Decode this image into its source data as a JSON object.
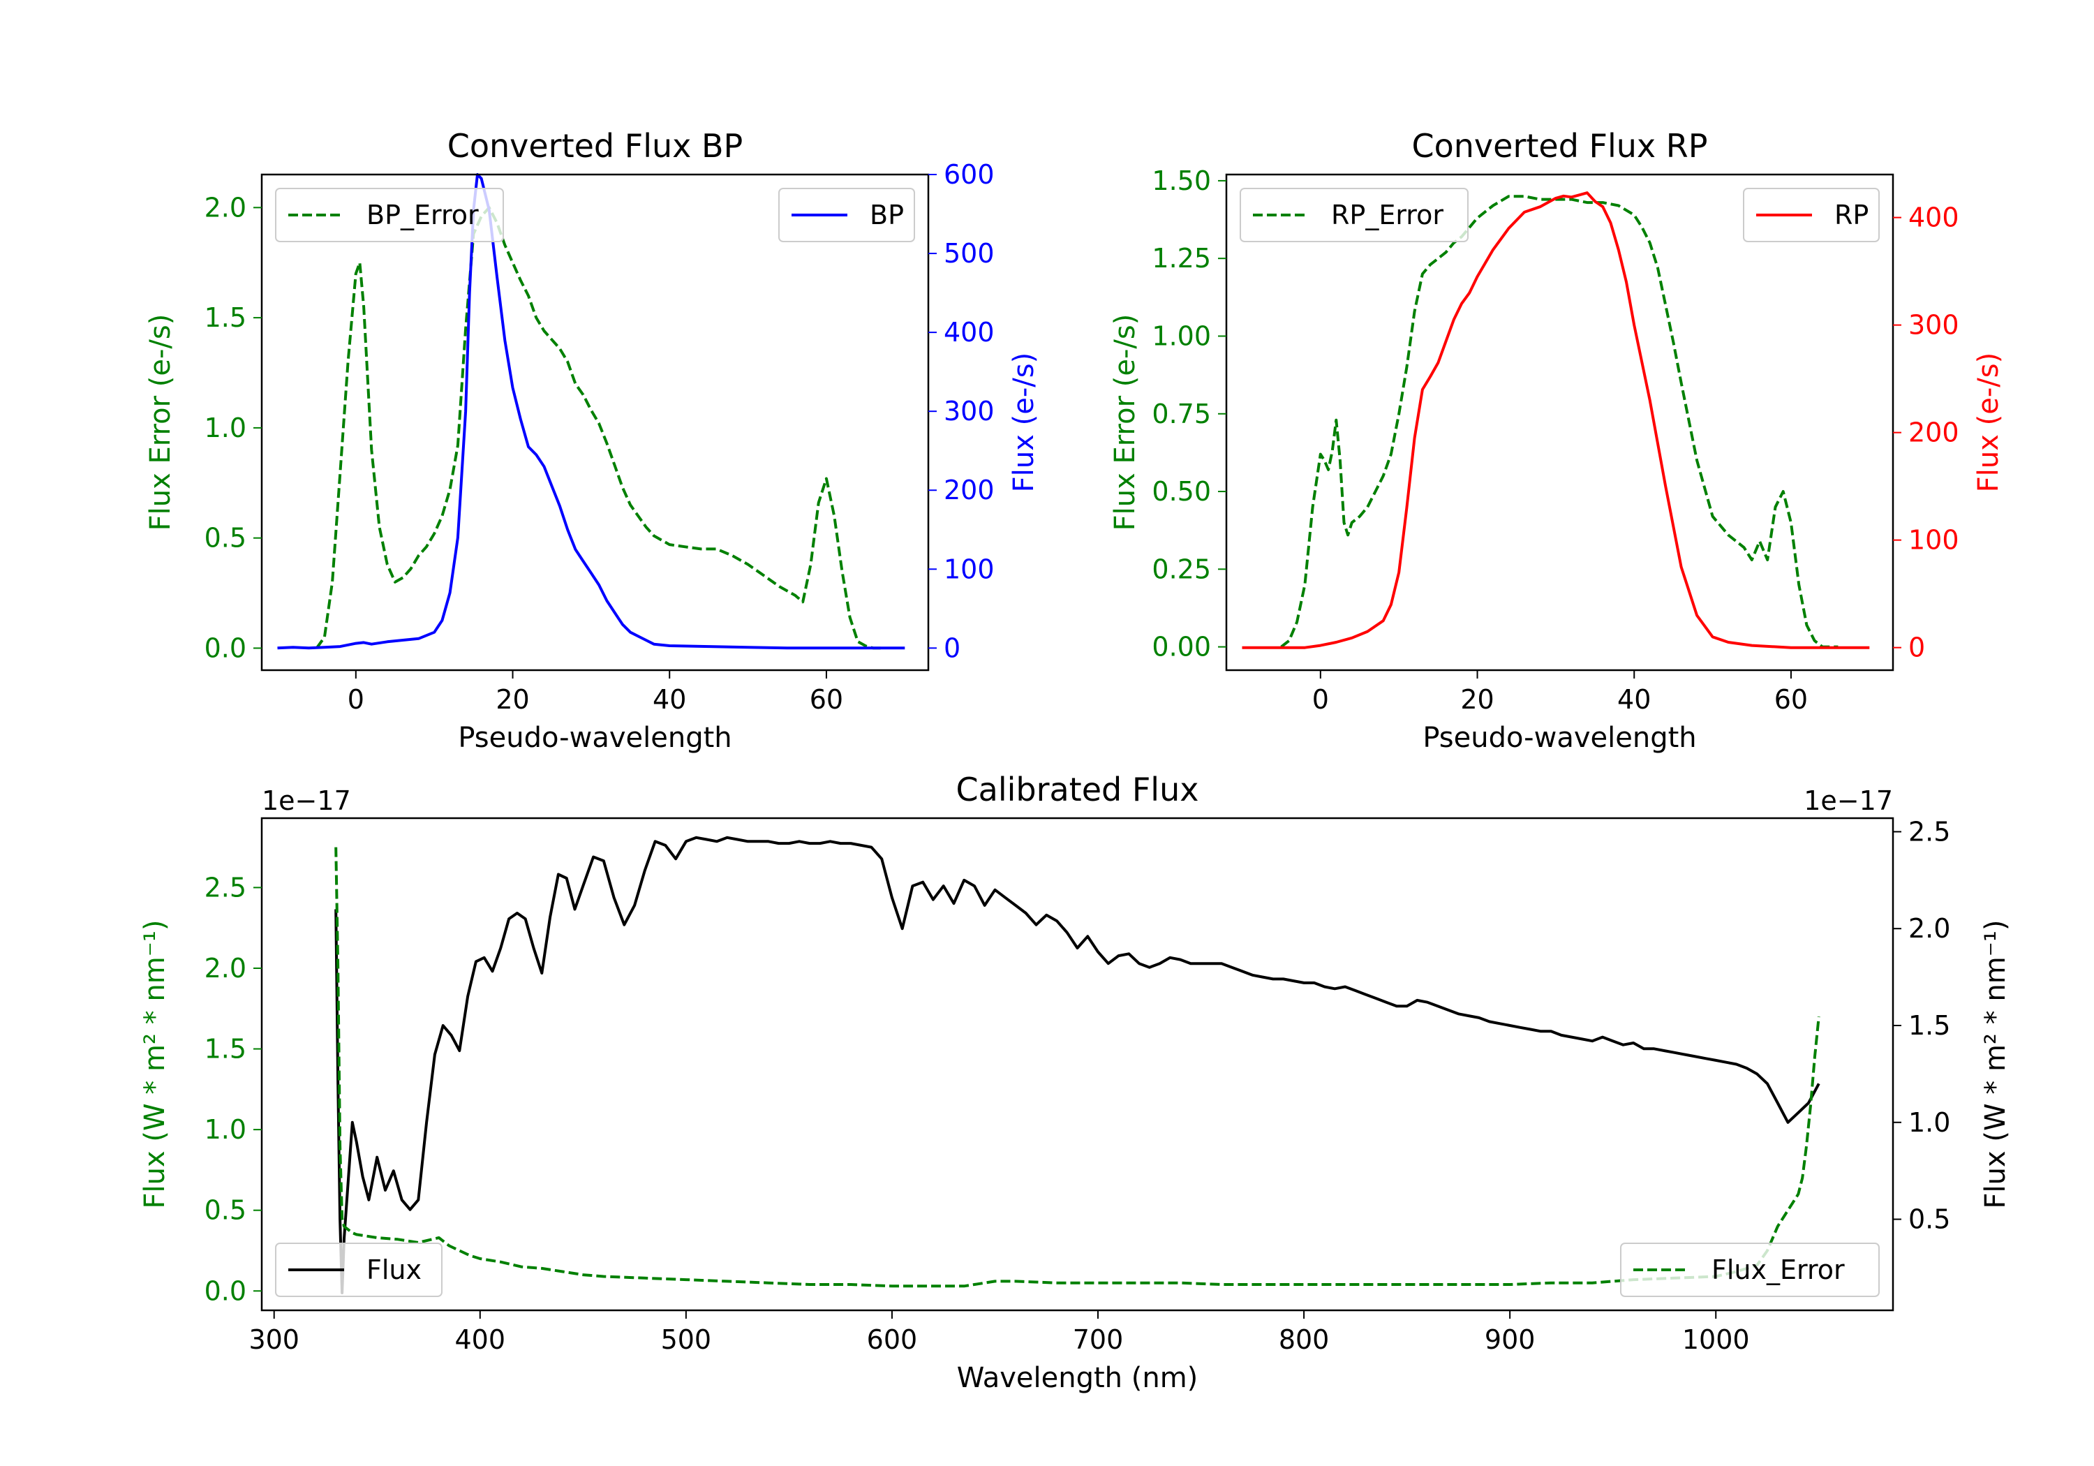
{
  "colors": {
    "green": "#008000",
    "blue": "#0000ff",
    "red": "#ff0000",
    "black": "#000000"
  },
  "chart_data": [
    {
      "id": "bp",
      "type": "line",
      "title": "Converted Flux BP",
      "xlabel": "Pseudo-wavelength",
      "ylabel_left": "Flux Error (e-/s)",
      "ylabel_right": "Flux (e-/s)",
      "xlim": [
        -12,
        73
      ],
      "ylim_left": [
        -0.1,
        2.15
      ],
      "ylim_right": [
        -28,
        600
      ],
      "xticks": [
        0,
        20,
        40,
        60
      ],
      "yticks_left": [
        0.0,
        0.5,
        1.0,
        1.5,
        2.0
      ],
      "yticks_right": [
        0,
        100,
        200,
        300,
        400,
        500,
        600
      ],
      "yticklabels_left": [
        "0.0",
        "0.5",
        "1.0",
        "1.5",
        "2.0"
      ],
      "yticklabels_right": [
        "0",
        "100",
        "200",
        "300",
        "400",
        "500",
        "600"
      ],
      "series": [
        {
          "name": "BP_Error",
          "axis": "left",
          "color": "green",
          "style": "dashed",
          "x": [
            -5,
            -4,
            -3,
            -2,
            -1,
            0,
            0.5,
            1,
            2,
            3,
            4,
            5,
            6,
            7,
            8,
            9,
            10,
            11,
            12,
            13,
            14,
            15,
            16,
            17,
            18,
            19,
            20,
            21,
            22,
            23,
            24,
            25,
            26,
            27,
            28,
            29,
            30,
            31,
            32,
            33,
            34,
            35,
            36,
            37,
            38,
            39,
            40,
            42,
            44,
            46,
            48,
            50,
            52,
            54,
            56,
            57,
            58,
            59,
            60,
            61,
            62,
            63,
            64,
            65,
            66,
            67
          ],
          "y": [
            0.0,
            0.05,
            0.3,
            0.8,
            1.3,
            1.7,
            1.75,
            1.55,
            0.9,
            0.55,
            0.38,
            0.3,
            0.32,
            0.36,
            0.42,
            0.46,
            0.52,
            0.6,
            0.72,
            0.92,
            1.45,
            1.88,
            1.96,
            2.0,
            1.93,
            1.83,
            1.75,
            1.67,
            1.6,
            1.5,
            1.44,
            1.4,
            1.36,
            1.3,
            1.2,
            1.15,
            1.08,
            1.02,
            0.93,
            0.83,
            0.73,
            0.65,
            0.6,
            0.55,
            0.51,
            0.49,
            0.47,
            0.46,
            0.45,
            0.45,
            0.42,
            0.38,
            0.33,
            0.28,
            0.24,
            0.21,
            0.38,
            0.66,
            0.77,
            0.6,
            0.35,
            0.14,
            0.03,
            0.01,
            0.0,
            0.0
          ]
        },
        {
          "name": "BP",
          "axis": "right",
          "color": "blue",
          "style": "solid",
          "x": [
            -10,
            -8,
            -6,
            -4,
            -2,
            0,
            1,
            2,
            4,
            6,
            8,
            10,
            11,
            12,
            13,
            14,
            14.5,
            15,
            15.5,
            16,
            17,
            18,
            19,
            20,
            21,
            22,
            23,
            24,
            25,
            26,
            27,
            28,
            29,
            30,
            31,
            32,
            33,
            34,
            35,
            36,
            37,
            38,
            40,
            45,
            50,
            55,
            60,
            65,
            70
          ],
          "y": [
            0,
            1,
            0,
            1,
            2,
            6,
            7,
            5,
            8,
            10,
            12,
            20,
            35,
            70,
            140,
            300,
            450,
            555,
            600,
            595,
            555,
            470,
            390,
            330,
            290,
            255,
            245,
            230,
            205,
            180,
            150,
            125,
            110,
            95,
            80,
            60,
            45,
            30,
            20,
            15,
            10,
            5,
            3,
            2,
            1,
            0,
            0,
            0,
            0
          ]
        }
      ],
      "legend_left": {
        "label": "BP_Error",
        "placement": "upper left"
      },
      "legend_right": {
        "label": "BP",
        "placement": "upper right"
      }
    },
    {
      "id": "rp",
      "type": "line",
      "title": "Converted Flux RP",
      "xlabel": "Pseudo-wavelength",
      "ylabel_left": "Flux Error (e-/s)",
      "ylabel_right": "Flux (e-/s)",
      "xlim": [
        -12,
        73
      ],
      "ylim_left": [
        -0.075,
        1.52
      ],
      "ylim_right": [
        -21,
        440
      ],
      "xticks": [
        0,
        20,
        40,
        60
      ],
      "yticks_left": [
        0.0,
        0.25,
        0.5,
        0.75,
        1.0,
        1.25,
        1.5
      ],
      "yticks_right": [
        0,
        100,
        200,
        300,
        400
      ],
      "yticklabels_left": [
        "0.00",
        "0.25",
        "0.50",
        "0.75",
        "1.00",
        "1.25",
        "1.50"
      ],
      "yticklabels_right": [
        "0",
        "100",
        "200",
        "300",
        "400"
      ],
      "series": [
        {
          "name": "RP_Error",
          "axis": "left",
          "color": "green",
          "style": "dashed",
          "x": [
            -5,
            -4,
            -3,
            -2,
            -1,
            0,
            0.5,
            1,
            1.5,
            2,
            2.5,
            3,
            3.5,
            4,
            5,
            6,
            7,
            8,
            9,
            10,
            11,
            12,
            13,
            14,
            15,
            16,
            17,
            18,
            19,
            20,
            22,
            24,
            26,
            28,
            30,
            32,
            34,
            36,
            38,
            40,
            41,
            42,
            43,
            44,
            45,
            46,
            48,
            50,
            52,
            54,
            55,
            56,
            57,
            58,
            59,
            60,
            61,
            62,
            63,
            64,
            65,
            66
          ],
          "y": [
            0.0,
            0.02,
            0.08,
            0.2,
            0.45,
            0.62,
            0.6,
            0.57,
            0.63,
            0.73,
            0.6,
            0.4,
            0.36,
            0.4,
            0.42,
            0.45,
            0.5,
            0.55,
            0.62,
            0.75,
            0.9,
            1.08,
            1.2,
            1.23,
            1.25,
            1.27,
            1.3,
            1.32,
            1.35,
            1.38,
            1.42,
            1.45,
            1.45,
            1.44,
            1.44,
            1.44,
            1.43,
            1.43,
            1.42,
            1.39,
            1.35,
            1.3,
            1.22,
            1.1,
            0.98,
            0.85,
            0.6,
            0.42,
            0.36,
            0.32,
            0.28,
            0.34,
            0.28,
            0.45,
            0.5,
            0.4,
            0.2,
            0.07,
            0.02,
            0.0,
            0.0,
            0.0
          ]
        },
        {
          "name": "RP",
          "axis": "right",
          "color": "red",
          "style": "solid",
          "x": [
            -10,
            -6,
            -4,
            -2,
            0,
            2,
            4,
            6,
            8,
            9,
            10,
            11,
            12,
            13,
            14,
            15,
            16,
            17,
            18,
            19,
            20,
            22,
            24,
            26,
            28,
            30,
            31,
            32,
            33,
            34,
            35,
            36,
            37,
            38,
            39,
            40,
            42,
            44,
            46,
            48,
            50,
            52,
            55,
            60,
            65,
            70
          ],
          "y": [
            0,
            0,
            0,
            0,
            2,
            5,
            9,
            15,
            25,
            40,
            70,
            130,
            195,
            240,
            252,
            265,
            285,
            305,
            320,
            330,
            345,
            370,
            390,
            405,
            410,
            418,
            420,
            419,
            421,
            423,
            415,
            410,
            395,
            370,
            340,
            300,
            230,
            150,
            75,
            30,
            10,
            5,
            2,
            0,
            0,
            0
          ]
        }
      ],
      "legend_left": {
        "label": "RP_Error",
        "placement": "upper left"
      },
      "legend_right": {
        "label": "RP",
        "placement": "upper right"
      }
    },
    {
      "id": "cal",
      "type": "line",
      "title": "Calibrated Flux",
      "xlabel": "Wavelength (nm)",
      "ylabel_left": "Flux (W * m² * nm⁻¹)",
      "ylabel_right": "Flux (W * m² * nm⁻¹)",
      "offset_left": "1e−17",
      "offset_right": "1e−17",
      "xlim": [
        294,
        1086
      ],
      "ylim_left": [
        -0.12,
        2.93
      ],
      "ylim_right": [
        0.03,
        2.57
      ],
      "xticks": [
        300,
        400,
        500,
        600,
        700,
        800,
        900,
        1000
      ],
      "yticks_left": [
        0.0,
        0.5,
        1.0,
        1.5,
        2.0,
        2.5
      ],
      "yticks_right": [
        0.5,
        1.0,
        1.5,
        2.0,
        2.5
      ],
      "yticklabels_left": [
        "0.0",
        "0.5",
        "1.0",
        "1.5",
        "2.0",
        "2.5"
      ],
      "yticklabels_right": [
        "0.5",
        "1.0",
        "1.5",
        "2.0",
        "2.5"
      ],
      "series": [
        {
          "name": "Flux",
          "axis": "right",
          "color": "black",
          "style": "solid",
          "x": [
            330,
            331,
            332,
            333,
            334,
            336,
            338,
            340,
            343,
            346,
            350,
            354,
            358,
            362,
            366,
            370,
            374,
            378,
            382,
            386,
            390,
            394,
            398,
            402,
            406,
            410,
            414,
            418,
            422,
            426,
            430,
            434,
            438,
            442,
            446,
            450,
            455,
            460,
            465,
            470,
            475,
            480,
            485,
            490,
            495,
            500,
            505,
            510,
            515,
            520,
            525,
            530,
            535,
            540,
            545,
            550,
            555,
            560,
            565,
            570,
            575,
            580,
            585,
            590,
            595,
            600,
            605,
            610,
            615,
            620,
            625,
            630,
            635,
            640,
            645,
            650,
            655,
            660,
            665,
            670,
            675,
            680,
            685,
            690,
            695,
            700,
            705,
            710,
            715,
            720,
            725,
            730,
            735,
            740,
            745,
            750,
            755,
            760,
            765,
            770,
            775,
            780,
            785,
            790,
            795,
            800,
            805,
            810,
            815,
            820,
            825,
            830,
            835,
            840,
            845,
            850,
            855,
            860,
            865,
            870,
            875,
            880,
            885,
            890,
            895,
            900,
            905,
            910,
            915,
            920,
            925,
            930,
            935,
            940,
            945,
            950,
            955,
            960,
            965,
            970,
            975,
            980,
            985,
            990,
            995,
            1000,
            1005,
            1010,
            1015,
            1020,
            1025,
            1030,
            1035,
            1040,
            1045,
            1050
          ],
          "y": [
            2.1,
            1.2,
            0.5,
            0.12,
            0.4,
            0.7,
            1.0,
            0.9,
            0.72,
            0.6,
            0.82,
            0.65,
            0.75,
            0.6,
            0.55,
            0.6,
            1.0,
            1.35,
            1.5,
            1.45,
            1.37,
            1.65,
            1.83,
            1.85,
            1.78,
            1.9,
            2.05,
            2.08,
            2.05,
            1.9,
            1.77,
            2.06,
            2.28,
            2.26,
            2.1,
            2.22,
            2.37,
            2.35,
            2.16,
            2.02,
            2.12,
            2.3,
            2.45,
            2.43,
            2.36,
            2.45,
            2.47,
            2.46,
            2.45,
            2.47,
            2.46,
            2.45,
            2.45,
            2.45,
            2.44,
            2.44,
            2.45,
            2.44,
            2.44,
            2.45,
            2.44,
            2.44,
            2.43,
            2.42,
            2.36,
            2.16,
            2.0,
            2.22,
            2.24,
            2.15,
            2.22,
            2.13,
            2.25,
            2.22,
            2.12,
            2.2,
            2.16,
            2.12,
            2.08,
            2.02,
            2.07,
            2.04,
            1.98,
            1.9,
            1.96,
            1.88,
            1.82,
            1.86,
            1.87,
            1.82,
            1.8,
            1.82,
            1.85,
            1.84,
            1.82,
            1.82,
            1.82,
            1.82,
            1.8,
            1.78,
            1.76,
            1.75,
            1.74,
            1.74,
            1.73,
            1.72,
            1.72,
            1.7,
            1.69,
            1.7,
            1.68,
            1.66,
            1.64,
            1.62,
            1.6,
            1.6,
            1.63,
            1.62,
            1.6,
            1.58,
            1.56,
            1.55,
            1.54,
            1.52,
            1.51,
            1.5,
            1.49,
            1.48,
            1.47,
            1.47,
            1.45,
            1.44,
            1.43,
            1.42,
            1.44,
            1.42,
            1.4,
            1.41,
            1.38,
            1.38,
            1.37,
            1.36,
            1.35,
            1.34,
            1.33,
            1.32,
            1.31,
            1.3,
            1.28,
            1.25,
            1.2,
            1.1,
            1.0,
            1.05,
            1.1,
            1.2
          ]
        },
        {
          "name": "Flux_Error",
          "axis": "left",
          "color": "green",
          "style": "dashed",
          "x": [
            330,
            331,
            332,
            333,
            334,
            336,
            338,
            340,
            345,
            350,
            360,
            370,
            380,
            385,
            390,
            395,
            400,
            410,
            420,
            430,
            440,
            450,
            460,
            480,
            500,
            520,
            540,
            560,
            580,
            600,
            620,
            635,
            640,
            645,
            650,
            660,
            680,
            700,
            720,
            740,
            760,
            780,
            800,
            820,
            840,
            860,
            880,
            900,
            920,
            940,
            960,
            980,
            1000,
            1010,
            1020,
            1025,
            1030,
            1035,
            1040,
            1042,
            1044,
            1046,
            1048,
            1050
          ],
          "y": [
            2.75,
            2.0,
            0.9,
            0.45,
            0.4,
            0.38,
            0.36,
            0.35,
            0.34,
            0.33,
            0.32,
            0.3,
            0.33,
            0.28,
            0.25,
            0.22,
            0.2,
            0.18,
            0.15,
            0.14,
            0.12,
            0.1,
            0.09,
            0.08,
            0.07,
            0.06,
            0.05,
            0.04,
            0.04,
            0.03,
            0.03,
            0.03,
            0.04,
            0.05,
            0.06,
            0.06,
            0.05,
            0.05,
            0.05,
            0.05,
            0.04,
            0.04,
            0.04,
            0.04,
            0.04,
            0.04,
            0.04,
            0.04,
            0.05,
            0.05,
            0.07,
            0.08,
            0.09,
            0.12,
            0.16,
            0.25,
            0.4,
            0.5,
            0.6,
            0.7,
            0.9,
            1.15,
            1.45,
            1.7
          ]
        }
      ],
      "legend_left": {
        "label": "Flux",
        "placement": "lower left"
      },
      "legend_right": {
        "label": "Flux_Error",
        "placement": "lower right"
      }
    }
  ]
}
